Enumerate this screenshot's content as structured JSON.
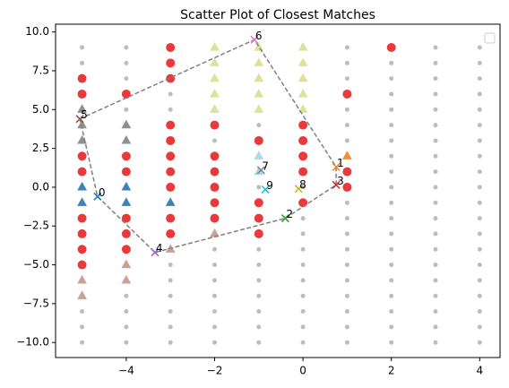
{
  "chart_data": {
    "type": "scatter",
    "title": "Scatter Plot of Closest Matches",
    "xlim": [
      -5.6,
      4.46
    ],
    "ylim": [
      -10.97,
      10.5
    ],
    "xticks": [
      {
        "value": -4,
        "label": "−4"
      },
      {
        "value": -2,
        "label": "−2"
      },
      0,
      2,
      4
    ],
    "yticks": [
      {
        "value": -10,
        "label": "−10.0"
      },
      {
        "value": -7.5,
        "label": "−7.5"
      },
      {
        "value": -5,
        "label": "−5.0"
      },
      {
        "value": -2.5,
        "label": "−2.5"
      },
      {
        "value": 0,
        "label": "0.0"
      },
      2.5,
      {
        "value": 5,
        "label": "5.0"
      },
      7.5,
      {
        "value": 10,
        "label": "10.0"
      }
    ],
    "series": [
      {
        "marker": "o",
        "size": 2.5,
        "color": "#bdbdbd",
        "x": [
          -5,
          -5,
          -5,
          -5,
          -5,
          -5,
          -5,
          -5,
          -5,
          -5,
          -5,
          -5,
          -5,
          -5,
          -5,
          -5,
          -5,
          -5,
          -5,
          -5,
          -4,
          -4,
          -4,
          -4,
          -4,
          -4,
          -4,
          -4,
          -4,
          -4,
          -4,
          -4,
          -4,
          -4,
          -4,
          -4,
          -4,
          -4,
          -4,
          -4,
          -3,
          -3,
          -3,
          -3,
          -3,
          -3,
          -3,
          -3,
          -3,
          -3,
          -3,
          -3,
          -3,
          -3,
          -3,
          -3,
          -3,
          -3,
          -3,
          -3,
          -2,
          -2,
          -2,
          -2,
          -2,
          -2,
          -2,
          -2,
          -2,
          -2,
          -2,
          -2,
          -2,
          -2,
          -2,
          -2,
          -2,
          -2,
          -2,
          -2,
          -1,
          -1,
          -1,
          -1,
          -1,
          -1,
          -1,
          -1,
          -1,
          -1,
          -1,
          -1,
          -1,
          -1,
          -1,
          -1,
          -1,
          -1,
          -1,
          -1,
          0,
          0,
          0,
          0,
          0,
          0,
          0,
          0,
          0,
          0,
          0,
          0,
          0,
          0,
          0,
          0,
          0,
          0,
          0,
          0,
          1,
          1,
          1,
          1,
          1,
          1,
          1,
          1,
          1,
          1,
          1,
          1,
          1,
          1,
          1,
          1,
          1,
          1,
          1,
          1,
          2,
          2,
          2,
          2,
          2,
          2,
          2,
          2,
          2,
          2,
          2,
          2,
          2,
          2,
          2,
          2,
          2,
          2,
          2,
          2,
          3,
          3,
          3,
          3,
          3,
          3,
          3,
          3,
          3,
          3,
          3,
          3,
          3,
          3,
          3,
          3,
          3,
          3,
          3,
          3,
          4,
          4,
          4,
          4,
          4,
          4,
          4,
          4,
          4,
          4,
          4,
          4,
          4,
          4,
          4,
          4,
          4,
          4,
          4,
          4
        ],
        "y": [
          9,
          8,
          7,
          6,
          5,
          4,
          3,
          2,
          1,
          0,
          -1,
          -2,
          -3,
          -4,
          -5,
          -6,
          -7,
          -8,
          -9,
          -10,
          9,
          8,
          7,
          6,
          5,
          4,
          3,
          2,
          1,
          0,
          -1,
          -2,
          -3,
          -4,
          -5,
          -6,
          -7,
          -8,
          -9,
          -10,
          9,
          8,
          7,
          6,
          5,
          4,
          3,
          2,
          1,
          0,
          -1,
          -2,
          -3,
          -4,
          -5,
          -6,
          -7,
          -8,
          -9,
          -10,
          9,
          8,
          7,
          6,
          5,
          4,
          3,
          2,
          1,
          0,
          -1,
          -2,
          -3,
          -4,
          -5,
          -6,
          -7,
          -8,
          -9,
          -10,
          9,
          8,
          7,
          6,
          5,
          4,
          3,
          2,
          1,
          0,
          -1,
          -2,
          -3,
          -4,
          -5,
          -6,
          -7,
          -8,
          -9,
          -10,
          9,
          8,
          7,
          6,
          5,
          4,
          3,
          2,
          1,
          0,
          -1,
          -2,
          -3,
          -4,
          -5,
          -6,
          -7,
          -8,
          -9,
          -10,
          9,
          8,
          7,
          6,
          5,
          4,
          3,
          2,
          1,
          0,
          -1,
          -2,
          -3,
          -4,
          -5,
          -6,
          -7,
          -8,
          -9,
          -10,
          9,
          8,
          7,
          6,
          5,
          4,
          3,
          2,
          1,
          0,
          -1,
          -2,
          -3,
          -4,
          -5,
          -6,
          -7,
          -8,
          -9,
          -10,
          9,
          8,
          7,
          6,
          5,
          4,
          3,
          2,
          1,
          0,
          -1,
          -2,
          -3,
          -4,
          -5,
          -6,
          -7,
          -8,
          -9,
          -10,
          9,
          8,
          7,
          6,
          5,
          4,
          3,
          2,
          1,
          0,
          -1,
          -2,
          -3,
          -4,
          -5,
          -6,
          -7,
          -8,
          -9,
          -10
        ]
      },
      {
        "marker": "o",
        "size": 5,
        "color": "#e8393b",
        "x": [
          -5,
          -5,
          -5,
          -5,
          -5,
          -5,
          -5,
          -5,
          -4,
          -4,
          -4,
          -4,
          -4,
          -4,
          -3,
          -3,
          -3,
          -3,
          -3,
          -3,
          -3,
          -3,
          -3,
          -3,
          -2,
          -2,
          -2,
          -2,
          -2,
          -2,
          -1,
          -1,
          -1,
          -1,
          0,
          0,
          0,
          0,
          0,
          1,
          1,
          1,
          2
        ],
        "y": [
          7,
          6,
          2,
          1,
          -2,
          -3,
          -4,
          -5,
          6,
          2,
          1,
          -2,
          -3,
          -4,
          9,
          8,
          7,
          4,
          3,
          2,
          1,
          0,
          -2,
          -3,
          4,
          2,
          1,
          0,
          -1,
          -2,
          3,
          -1,
          -2,
          -3,
          4,
          3,
          2,
          1,
          -1,
          6,
          1,
          0,
          9
        ]
      },
      {
        "marker": "^",
        "size": 6,
        "color": "#3b83bd",
        "x": [
          -5,
          -5,
          -4,
          -4,
          -3
        ],
        "y": [
          0,
          -1,
          0,
          -1,
          -1
        ]
      },
      {
        "marker": "^",
        "size": 6,
        "color": "#8f8f8f",
        "x": [
          -5,
          -5,
          -5,
          -4,
          -4
        ],
        "y": [
          5,
          4,
          3,
          4,
          3
        ]
      },
      {
        "marker": "^",
        "size": 6,
        "color": "#cba196",
        "x": [
          -5,
          -5,
          -4,
          -4,
          -3,
          -2
        ],
        "y": [
          -6,
          -7,
          -5,
          -6,
          -4,
          -3
        ]
      },
      {
        "marker": "^",
        "size": 6,
        "color": "#dfe19b",
        "x": [
          -2,
          -2,
          -2,
          -2,
          -2,
          -1,
          -1,
          -1,
          -1,
          -1,
          0,
          0,
          0,
          0,
          0
        ],
        "y": [
          9,
          8,
          7,
          6,
          5,
          9,
          8,
          7,
          6,
          5,
          9,
          8,
          7,
          6,
          5
        ]
      },
      {
        "marker": "^",
        "size": 6,
        "color": "#a8dde6",
        "x": [
          -1,
          -1
        ],
        "y": [
          2,
          1
        ]
      },
      {
        "marker": "^",
        "size": 6,
        "color": "#f2902e",
        "x": [
          1
        ],
        "y": [
          2
        ]
      },
      {
        "marker": "line",
        "color": "#808080",
        "x": [
          -5.05,
          -1.1,
          0.75,
          0.75,
          -0.4,
          -3.35,
          -4.65,
          -5.05
        ],
        "y": [
          4.4,
          9.5,
          1.3,
          0.15,
          -2.0,
          -4.2,
          -0.6,
          4.4
        ]
      },
      {
        "marker": "x",
        "size": 4,
        "colors": [
          "#1f77b4",
          "#ff7f0e",
          "#2ca02c",
          "#d62728",
          "#9467bd",
          "#8c564b",
          "#e377c2",
          "#7f7f7f",
          "#bcbd22",
          "#17becf"
        ],
        "labels": [
          "0",
          "1",
          "2",
          "3",
          "4",
          "5",
          "6",
          "7",
          "8",
          "9"
        ],
        "x": [
          -4.65,
          0.75,
          -0.4,
          0.75,
          -3.35,
          -5.05,
          -1.1,
          -0.95,
          -0.1,
          -0.85
        ],
        "y": [
          -0.6,
          1.3,
          -2.0,
          0.15,
          -4.2,
          4.4,
          9.5,
          1.1,
          -0.1,
          -0.15
        ]
      }
    ]
  }
}
